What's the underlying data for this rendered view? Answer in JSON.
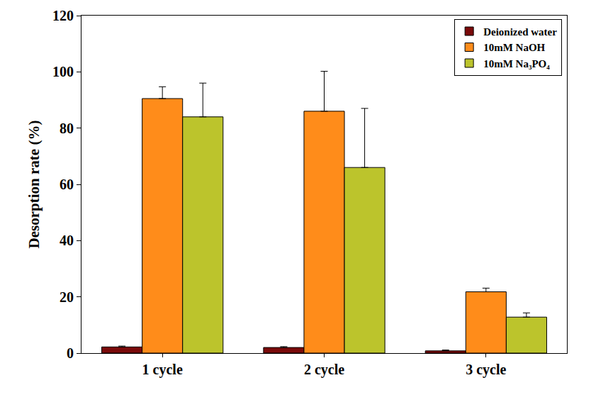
{
  "chart_data": {
    "type": "bar",
    "categories": [
      "1 cycle",
      "2 cycle",
      "3 cycle"
    ],
    "series": [
      {
        "name": "Deionized water",
        "color": "#7a0a0a",
        "values": [
          2.2,
          2.0,
          0.8
        ],
        "errors": [
          0.3,
          0.3,
          0.3
        ]
      },
      {
        "name": "10mM NaOH",
        "color": "#ff8c1a",
        "values": [
          90.5,
          86,
          21.8
        ],
        "errors": [
          4.2,
          14.2,
          1.3
        ]
      },
      {
        "name": "10mM Na₃PO₄",
        "color": "#bcc42c",
        "values": [
          84,
          66,
          12.8
        ],
        "errors": [
          12,
          21,
          1.5
        ]
      }
    ],
    "y_label": "Desorption rate (%)",
    "ylim": [
      0,
      120
    ],
    "yticks": [
      0,
      20,
      40,
      60,
      80,
      100,
      120
    ],
    "grid": false,
    "legend": "upper right"
  }
}
